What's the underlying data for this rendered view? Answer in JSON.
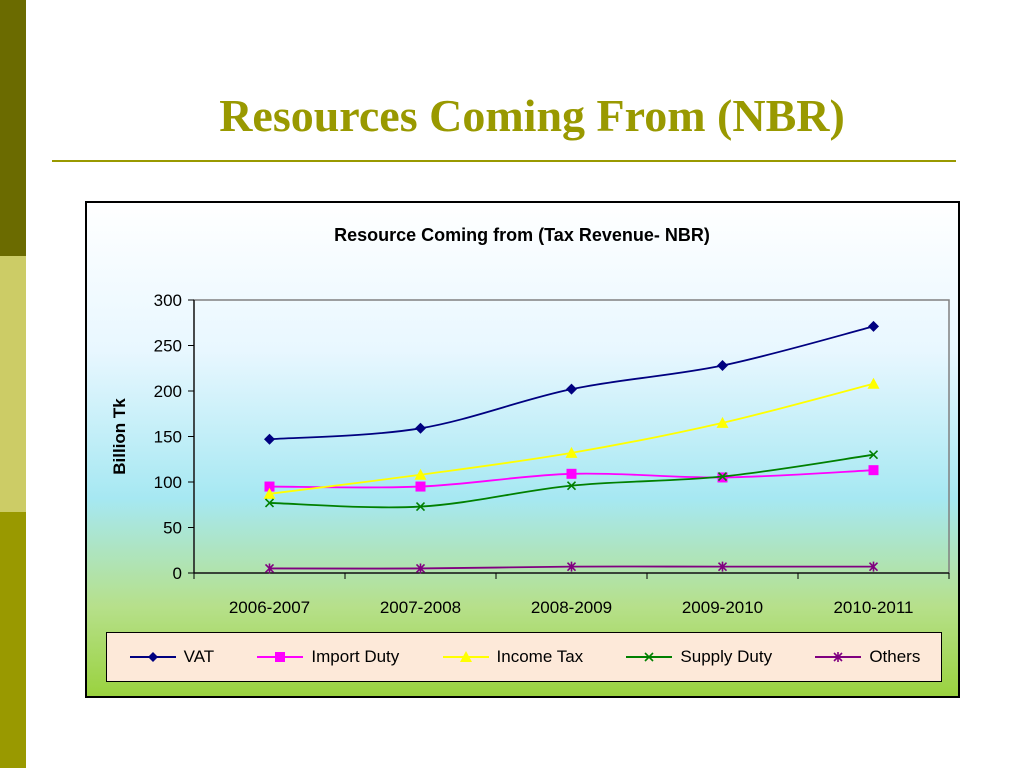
{
  "slide": {
    "title": "Resources Coming From (NBR)"
  },
  "chart_data": {
    "type": "line",
    "title": "Resource Coming from (Tax Revenue- NBR)",
    "ylabel": "Billion Tk",
    "xlabel": "",
    "categories": [
      "2006-2007",
      "2007-2008",
      "2008-2009",
      "2009-2010",
      "2010-2011"
    ],
    "ylim": [
      0,
      300
    ],
    "yticks": [
      0,
      50,
      100,
      150,
      200,
      250,
      300
    ],
    "grid": false,
    "legend_position": "bottom",
    "series": [
      {
        "name": "VAT",
        "values": [
          147,
          159,
          202,
          228,
          271
        ],
        "color": "#000080",
        "marker": "diamond"
      },
      {
        "name": "Import Duty",
        "values": [
          95,
          95,
          109,
          105,
          113
        ],
        "color": "#ff00ff",
        "marker": "square"
      },
      {
        "name": "Income Tax",
        "values": [
          87,
          108,
          132,
          165,
          208
        ],
        "color": "#ffff00",
        "marker": "triangle"
      },
      {
        "name": "Supply Duty",
        "values": [
          77,
          73,
          96,
          106,
          130
        ],
        "color": "#008000",
        "marker": "x"
      },
      {
        "name": "Others",
        "values": [
          5,
          5,
          7,
          7,
          7
        ],
        "color": "#800080",
        "marker": "star"
      }
    ]
  }
}
